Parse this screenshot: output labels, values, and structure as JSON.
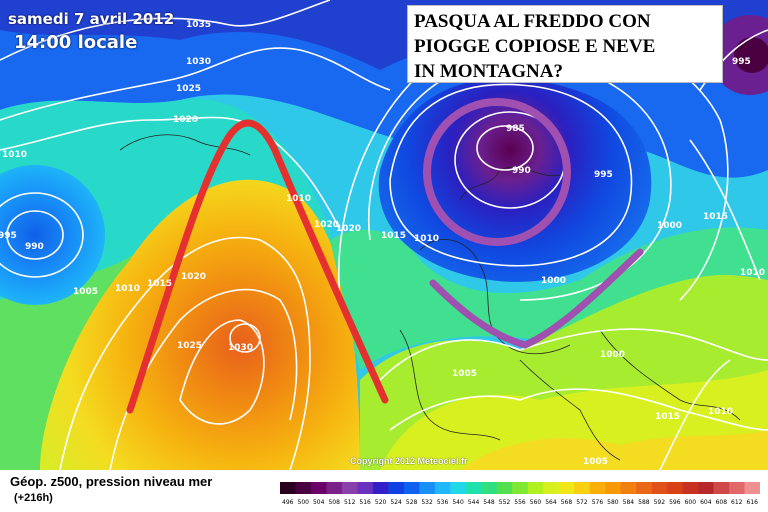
{
  "header": {
    "date": "samedi 7 avril 2012",
    "time": "14:00 locale"
  },
  "headline": {
    "lines": [
      "PASQUA AL FREDDO CON",
      "PIOGGE COPIOSE E NEVE",
      "IN MONTAGNA?"
    ]
  },
  "map": {
    "copyright": "Copyright 2012 Meteociel.fr",
    "isobar_labels": [
      "1035",
      "1030",
      "1025",
      "1020",
      "1010",
      "995",
      "990",
      "1005",
      "1010",
      "1020",
      "1015",
      "1025",
      "1030",
      "1010",
      "1020",
      "1020",
      "1015",
      "1010",
      "985",
      "990",
      "995",
      "1000",
      "1000",
      "1005",
      "1005",
      "1015",
      "1000",
      "1010",
      "1010",
      "995",
      "1015"
    ],
    "pressure_centers": [
      "985",
      "1030",
      "995"
    ],
    "colors": {
      "ridge_line": "#e53030",
      "trough_marks": "#a050b0",
      "isobars": "#ffffff"
    }
  },
  "footer": {
    "title": "Géop. z500, pression niveau mer",
    "forecast_hour": "(+216h)"
  },
  "legend": {
    "values": [
      "496",
      "500",
      "504",
      "508",
      "512",
      "516",
      "520",
      "524",
      "528",
      "532",
      "536",
      "540",
      "544",
      "548",
      "552",
      "556",
      "560",
      "564",
      "568",
      "572",
      "576",
      "580",
      "584",
      "588",
      "592",
      "596",
      "600",
      "604",
      "608",
      "612",
      "616"
    ],
    "colors": [
      "#2a0020",
      "#4a0040",
      "#6a0068",
      "#7a2088",
      "#8a40a8",
      "#6a30c0",
      "#3020c8",
      "#1040e0",
      "#1060f0",
      "#1890f8",
      "#20b8f8",
      "#20d8e8",
      "#20e0b0",
      "#30e080",
      "#50e050",
      "#80e830",
      "#b0f020",
      "#d8f020",
      "#f0e818",
      "#f8d010",
      "#f8b008",
      "#f89808",
      "#f08010",
      "#e86818",
      "#e05018",
      "#d84018",
      "#c83020",
      "#b82828",
      "#d04848",
      "#e06868",
      "#f09090"
    ]
  }
}
